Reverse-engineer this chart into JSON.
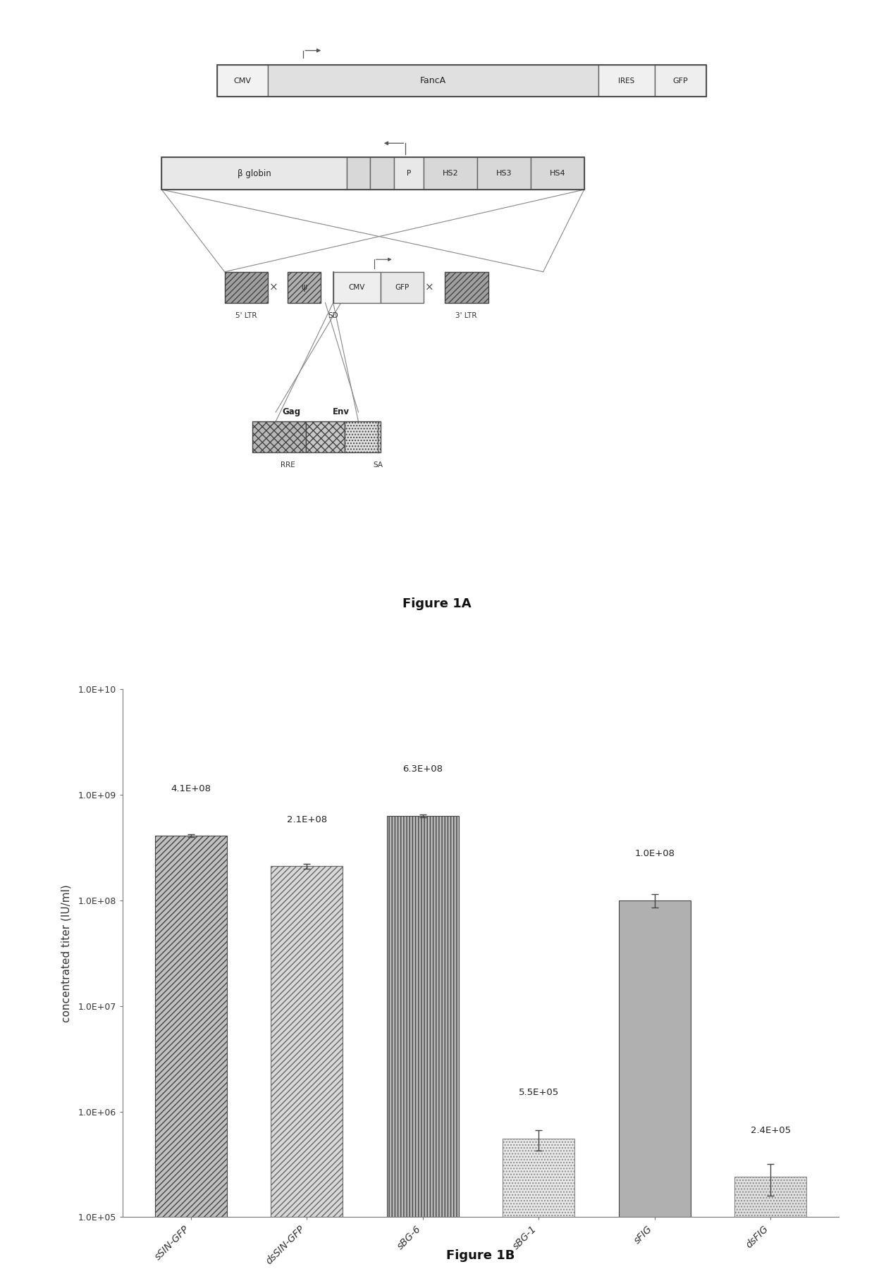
{
  "fig1b": {
    "categories": [
      "sSIN-GFP",
      "dsSIN-GFP",
      "sBG-6",
      "sBG-1",
      "sFIG",
      "dsFIG"
    ],
    "values": [
      410000000.0,
      210000000.0,
      630000000.0,
      550000.0,
      100000000.0,
      240000.0
    ],
    "errors": [
      15000000.0,
      10000000.0,
      20000000.0,
      120000.0,
      15000000.0,
      80000.0
    ],
    "labels": [
      "4.1E+08",
      "2.1E+08",
      "6.3E+08",
      "5.5E+05",
      "1.0E+08",
      "2.4E+05"
    ],
    "ylabel": "concentrated titer (IU/ml)",
    "ylim_min": 100000.0,
    "ylim_max": 10000000000.0,
    "figure_label": "Figure 1B",
    "hatches": [
      "////",
      "////",
      "||||",
      "....",
      "====",
      "...."
    ],
    "facecolors": [
      "#c0c0c0",
      "#d8d8d8",
      "#b8b8b8",
      "#e8e8e8",
      "#b0b0b0",
      "#e0e0e0"
    ],
    "edgecolors": [
      "#444444",
      "#666666",
      "#444444",
      "#888888",
      "#444444",
      "#888888"
    ]
  },
  "background_color": "#ffffff",
  "figure1a_label": "Figure 1A"
}
